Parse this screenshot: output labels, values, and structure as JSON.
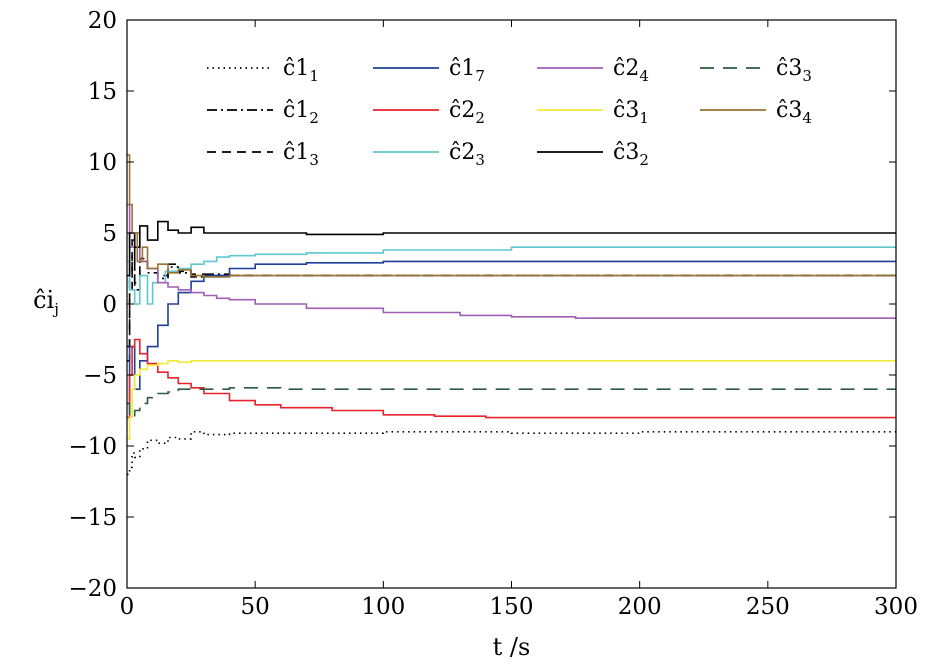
{
  "chart_data": {
    "type": "line",
    "title": "",
    "xlabel": "t /s",
    "ylabel": "ĉij",
    "xlim": [
      0,
      300
    ],
    "ylim": [
      -20,
      20
    ],
    "xticks": [
      0,
      50,
      100,
      150,
      200,
      250,
      300
    ],
    "yticks": [
      -20,
      -15,
      -10,
      -5,
      0,
      5,
      10,
      15,
      20
    ],
    "grid": false,
    "legend_position": "top",
    "series": [
      {
        "name": "ĉ11",
        "sub": "11",
        "color": "#000000",
        "dash": "dotted",
        "x": [
          0,
          1,
          2,
          3,
          5,
          8,
          12,
          16,
          20,
          25,
          30,
          40,
          60,
          100,
          150,
          200,
          250,
          300
        ],
        "y": [
          -12,
          -11.5,
          -10.5,
          -10.8,
          -10.2,
          -9.6,
          -9.8,
          -9.4,
          -9.5,
          -9.0,
          -9.2,
          -9.1,
          -9.1,
          -9.0,
          -9.1,
          -9.0,
          -9.0,
          -9.0
        ]
      },
      {
        "name": "ĉ12",
        "sub": "12",
        "color": "#000000",
        "dash": "dashdot",
        "x": [
          0,
          1,
          2,
          3,
          5,
          8,
          12,
          16,
          20,
          25,
          30,
          40,
          60,
          100,
          150,
          200,
          250,
          300
        ],
        "y": [
          -3,
          1,
          3.5,
          1.5,
          3.0,
          2.2,
          1.8,
          2.6,
          2.2,
          1.9,
          2.1,
          2.0,
          2.0,
          2.0,
          2.0,
          2.0,
          2.0,
          2.0
        ]
      },
      {
        "name": "ĉ13",
        "sub": "13",
        "color": "#000000",
        "dash": "dashed",
        "x": [
          0,
          1,
          2,
          3,
          5,
          8,
          12,
          16,
          20,
          25,
          30,
          40,
          60,
          80,
          100,
          150,
          200,
          250,
          300
        ],
        "y": [
          -4,
          2,
          4.5,
          1.0,
          3.2,
          2.5,
          2.0,
          2.8,
          2.3,
          2.1,
          2.0,
          2.0,
          2.0,
          2.0,
          2.0,
          2.0,
          2.0,
          2.0,
          2.0
        ]
      },
      {
        "name": "ĉ17",
        "sub": "17",
        "color": "#1f3f99",
        "dash": "solid",
        "x": [
          0,
          1,
          3,
          5,
          8,
          12,
          16,
          20,
          25,
          30,
          40,
          50,
          70,
          100,
          150,
          200,
          250,
          300
        ],
        "y": [
          -7,
          -3,
          -6,
          -4,
          -3,
          -1.5,
          0,
          0.8,
          1.6,
          2.0,
          2.5,
          2.8,
          2.9,
          3.0,
          3.0,
          3.0,
          3.0,
          3.0
        ]
      },
      {
        "name": "ĉ22",
        "sub": "22",
        "color": "#e8232b",
        "dash": "solid",
        "x": [
          0,
          1,
          2,
          3,
          5,
          8,
          12,
          16,
          20,
          25,
          30,
          40,
          50,
          60,
          80,
          100,
          120,
          140,
          150,
          200,
          250,
          300
        ],
        "y": [
          -8,
          -5,
          -3,
          -2.5,
          -3.5,
          -4.2,
          -4.8,
          -5.2,
          -5.6,
          -5.9,
          -6.3,
          -6.8,
          -7.1,
          -7.3,
          -7.5,
          -7.8,
          -7.9,
          -8.0,
          -8.0,
          -8.0,
          -8.0,
          -8.0
        ]
      },
      {
        "name": "ĉ23",
        "sub": "23",
        "color": "#5fc8cf",
        "dash": "solid",
        "x": [
          0,
          1,
          3,
          5,
          8,
          10,
          15,
          20,
          25,
          30,
          35,
          40,
          50,
          70,
          100,
          150,
          200,
          250,
          300
        ],
        "y": [
          3,
          1,
          0,
          2,
          0,
          1.5,
          2.3,
          2.5,
          2.8,
          3.0,
          3.3,
          3.4,
          3.5,
          3.6,
          3.8,
          4.0,
          4.0,
          4.0,
          4.0
        ]
      },
      {
        "name": "ĉ24",
        "sub": "24",
        "color": "#a05fb4",
        "dash": "solid",
        "x": [
          0,
          1,
          3,
          5,
          8,
          12,
          16,
          20,
          25,
          30,
          35,
          40,
          50,
          70,
          100,
          130,
          150,
          175,
          200,
          250,
          300
        ],
        "y": [
          7,
          4,
          5,
          3,
          2.5,
          1.5,
          1.2,
          1.0,
          0.8,
          0.6,
          0.4,
          0.3,
          0.0,
          -0.3,
          -0.6,
          -0.8,
          -0.9,
          -1.0,
          -1.0,
          -1.0,
          -1.0
        ]
      },
      {
        "name": "ĉ31",
        "sub": "31",
        "color": "#f2e93a",
        "dash": "solid",
        "x": [
          0,
          1,
          2,
          3,
          5,
          8,
          12,
          16,
          20,
          25,
          30,
          40,
          60,
          100,
          150,
          200,
          250,
          300
        ],
        "y": [
          -9.5,
          -8,
          -6,
          -5,
          -4.6,
          -4.3,
          -4.2,
          -4.0,
          -4.1,
          -4.0,
          -4.0,
          -4.0,
          -4.0,
          -4.0,
          -4.0,
          -4.0,
          -4.0,
          -4.0
        ]
      },
      {
        "name": "ĉ32",
        "sub": "32",
        "color": "#000000",
        "dash": "solid",
        "x": [
          0,
          1,
          3,
          5,
          8,
          12,
          16,
          20,
          25,
          30,
          40,
          50,
          70,
          100,
          150,
          200,
          250,
          300
        ],
        "y": [
          2,
          5,
          4,
          5.5,
          4.5,
          5.8,
          5.2,
          5.0,
          5.4,
          5.0,
          5.0,
          5.0,
          4.9,
          5.0,
          5.0,
          5.0,
          5.0,
          5.0
        ]
      },
      {
        "name": "ĉ33",
        "sub": "33",
        "color": "#2e5a40",
        "dash": "longdash",
        "x": [
          0,
          1,
          3,
          5,
          8,
          12,
          16,
          20,
          25,
          30,
          40,
          60,
          100,
          150,
          200,
          250,
          300
        ],
        "y": [
          -7,
          -8,
          -7.5,
          -7,
          -6.6,
          -6.3,
          -6.2,
          -6.0,
          -6.0,
          -6.0,
          -5.9,
          -6.0,
          -6.0,
          -6.0,
          -6.0,
          -6.0,
          -6.0
        ]
      },
      {
        "name": "ĉ34",
        "sub": "34",
        "color": "#9a7433",
        "dash": "solid",
        "x": [
          0,
          1,
          2,
          4,
          6,
          8,
          12,
          16,
          20,
          25,
          30,
          40,
          60,
          100,
          150,
          200,
          250,
          300
        ],
        "y": [
          10.5,
          7,
          5,
          3,
          4,
          2.5,
          2.8,
          2.2,
          2.4,
          2.0,
          1.9,
          2.0,
          2.0,
          2.0,
          2.0,
          2.0,
          2.0,
          2.0
        ]
      }
    ]
  }
}
